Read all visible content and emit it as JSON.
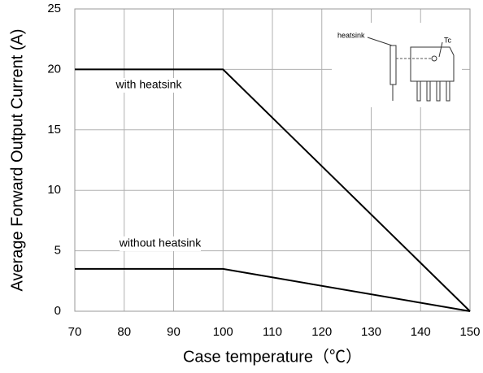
{
  "chart_data": {
    "type": "line",
    "x_label": "Case temperature（℃）",
    "y_label": "Average Forward Output Current (A)",
    "x": [
      70,
      100,
      150
    ],
    "series": [
      {
        "name": "with heatsink",
        "color": "#000000",
        "values": [
          20,
          20,
          0
        ]
      },
      {
        "name": "without heatsink",
        "color": "#000000",
        "values": [
          3.5,
          3.5,
          0
        ]
      }
    ],
    "xlim": [
      70,
      150
    ],
    "xticks": [
      70,
      80,
      90,
      100,
      110,
      120,
      130,
      140,
      150
    ],
    "ylim": [
      0,
      25
    ],
    "yticks": [
      0,
      5,
      10,
      15,
      20,
      25
    ],
    "grid": true,
    "inset_labels": [
      "heatsink",
      "Tc"
    ]
  }
}
